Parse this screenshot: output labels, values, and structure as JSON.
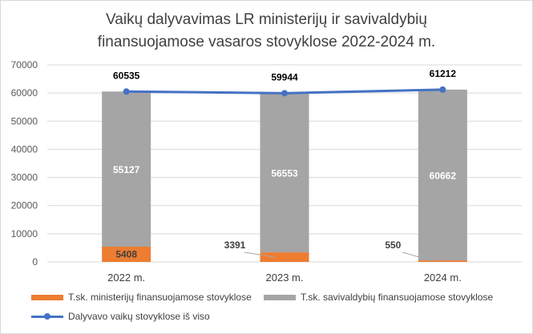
{
  "chart_data": {
    "type": "bar",
    "stacked": true,
    "title_lines": [
      "Vaikų dalyvavimas LR ministerijų ir savivaldybių",
      "finansuojamose vasaros stovyklose 2022-2024 m."
    ],
    "categories": [
      "2022 m.",
      "2023 m.",
      "2024 m."
    ],
    "series": [
      {
        "name": "T.sk. ministerijų finansuojamose stovyklose",
        "kind": "bar",
        "color": "#ed7d31",
        "values": [
          5408,
          3391,
          550
        ],
        "labels": [
          "5408",
          "3391",
          "550"
        ]
      },
      {
        "name": "T.sk. savivaldybių finansuojamose stovyklose",
        "kind": "bar",
        "color": "#a5a5a5",
        "values": [
          55127,
          56553,
          60662
        ],
        "labels": [
          "55127",
          "56553",
          "60662"
        ]
      },
      {
        "name": "Dalyvavo vaikų stovyklose iš viso",
        "kind": "line",
        "color": "#4472c4",
        "values": [
          60535,
          59944,
          61212
        ],
        "labels": [
          "60535",
          "59944",
          "61212"
        ]
      }
    ],
    "ylim": [
      0,
      70000
    ],
    "yticks": [
      0,
      10000,
      20000,
      30000,
      40000,
      50000,
      60000,
      70000
    ],
    "ytick_labels": [
      "0",
      "10000",
      "20000",
      "30000",
      "40000",
      "50000",
      "60000",
      "70000"
    ],
    "grid": true,
    "legend_position": "bottom"
  }
}
